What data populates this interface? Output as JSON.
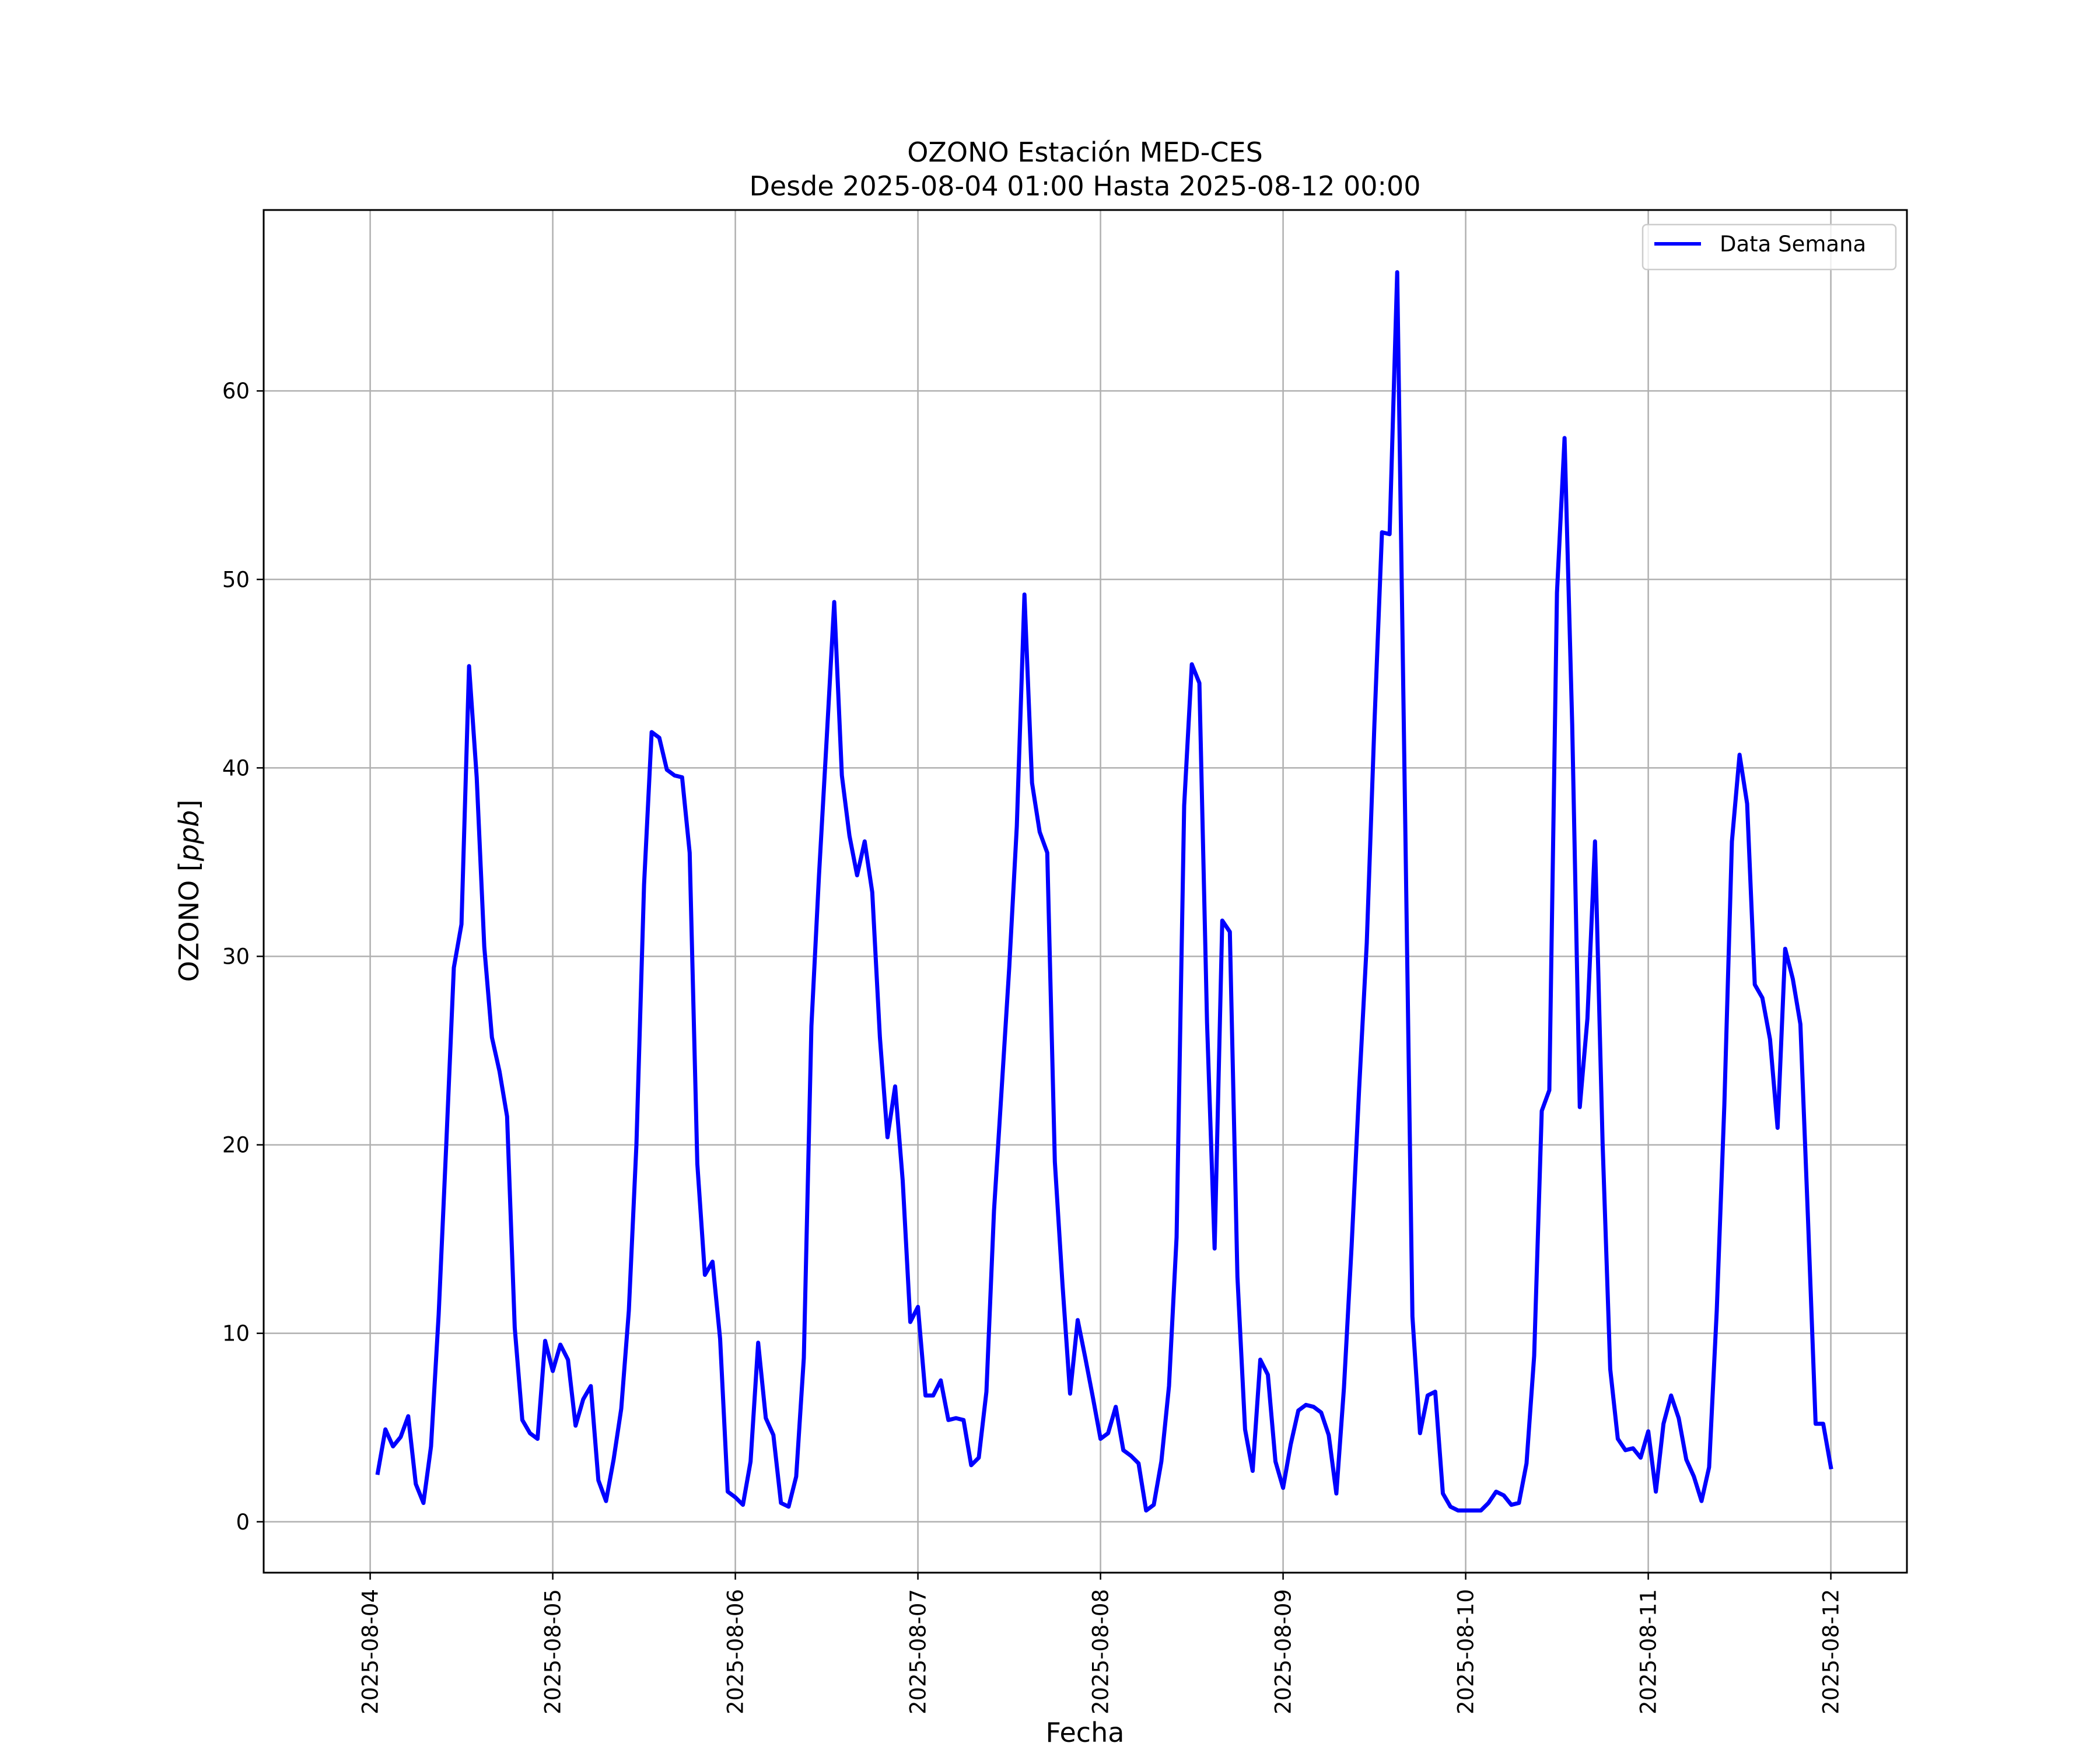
{
  "chart_data": {
    "type": "line",
    "title": "OZONO Estación MED-CES",
    "subtitle": "Desde 2025-08-04 01:00 Hasta 2025-08-12 00:00",
    "xlabel": "Fecha",
    "ylabel": "OZONO [ppb]",
    "xlim": [
      "2025-08-03 10:00",
      "2025-08-12 10:00"
    ],
    "ylim": [
      -2.7,
      69.6
    ],
    "grid": true,
    "legend_position": "top-right",
    "x_tick_labels": [
      "2025-08-04",
      "2025-08-05",
      "2025-08-06",
      "2025-08-07",
      "2025-08-08",
      "2025-08-09",
      "2025-08-10",
      "2025-08-11",
      "2025-08-12"
    ],
    "y_ticks": [
      0,
      10,
      20,
      30,
      40,
      50,
      60
    ],
    "series": [
      {
        "name": "Data Semana",
        "color": "#0000ff",
        "points": [
          [
            "2025-08-04 01:00",
            2.6
          ],
          [
            "2025-08-04 02:00",
            4.9
          ],
          [
            "2025-08-04 03:00",
            4.0
          ],
          [
            "2025-08-04 04:00",
            4.5
          ],
          [
            "2025-08-04 05:00",
            5.6
          ],
          [
            "2025-08-04 06:00",
            2.0
          ],
          [
            "2025-08-04 07:00",
            1.0
          ],
          [
            "2025-08-04 08:00",
            4.0
          ],
          [
            "2025-08-04 09:00",
            11.0
          ],
          [
            "2025-08-04 10:00",
            20.0
          ],
          [
            "2025-08-04 11:00",
            29.4
          ],
          [
            "2025-08-04 12:00",
            31.7
          ],
          [
            "2025-08-04 13:00",
            45.4
          ],
          [
            "2025-08-04 14:00",
            39.5
          ],
          [
            "2025-08-04 15:00",
            30.5
          ],
          [
            "2025-08-04 16:00",
            25.7
          ],
          [
            "2025-08-04 17:00",
            23.9
          ],
          [
            "2025-08-04 18:00",
            21.5
          ],
          [
            "2025-08-04 19:00",
            10.3
          ],
          [
            "2025-08-04 20:00",
            5.4
          ],
          [
            "2025-08-04 21:00",
            4.7
          ],
          [
            "2025-08-04 22:00",
            4.4
          ],
          [
            "2025-08-04 23:00",
            9.6
          ],
          [
            "2025-08-05 00:00",
            8.0
          ],
          [
            "2025-08-05 01:00",
            9.4
          ],
          [
            "2025-08-05 02:00",
            8.6
          ],
          [
            "2025-08-05 03:00",
            5.1
          ],
          [
            "2025-08-05 04:00",
            6.5
          ],
          [
            "2025-08-05 05:00",
            7.2
          ],
          [
            "2025-08-05 06:00",
            2.2
          ],
          [
            "2025-08-05 07:00",
            1.1
          ],
          [
            "2025-08-05 08:00",
            3.3
          ],
          [
            "2025-08-05 09:00",
            6.0
          ],
          [
            "2025-08-05 10:00",
            11.2
          ],
          [
            "2025-08-05 11:00",
            20.0
          ],
          [
            "2025-08-05 12:00",
            33.8
          ],
          [
            "2025-08-05 13:00",
            41.9
          ],
          [
            "2025-08-05 14:00",
            41.6
          ],
          [
            "2025-08-05 15:00",
            39.9
          ],
          [
            "2025-08-05 16:00",
            39.6
          ],
          [
            "2025-08-05 17:00",
            39.5
          ],
          [
            "2025-08-05 18:00",
            35.5
          ],
          [
            "2025-08-05 19:00",
            19.0
          ],
          [
            "2025-08-05 20:00",
            13.1
          ],
          [
            "2025-08-05 21:00",
            13.8
          ],
          [
            "2025-08-05 22:00",
            9.7
          ],
          [
            "2025-08-05 23:00",
            1.6
          ],
          [
            "2025-08-06 00:00",
            1.3
          ],
          [
            "2025-08-06 01:00",
            0.9
          ],
          [
            "2025-08-06 02:00",
            3.2
          ],
          [
            "2025-08-06 03:00",
            9.5
          ],
          [
            "2025-08-06 04:00",
            5.5
          ],
          [
            "2025-08-06 05:00",
            4.6
          ],
          [
            "2025-08-06 06:00",
            1.0
          ],
          [
            "2025-08-06 07:00",
            0.8
          ],
          [
            "2025-08-06 08:00",
            2.4
          ],
          [
            "2025-08-06 09:00",
            8.7
          ],
          [
            "2025-08-06 10:00",
            26.3
          ],
          [
            "2025-08-06 11:00",
            34.3
          ],
          [
            "2025-08-06 12:00",
            41.5
          ],
          [
            "2025-08-06 13:00",
            48.8
          ],
          [
            "2025-08-06 14:00",
            39.6
          ],
          [
            "2025-08-06 15:00",
            36.4
          ],
          [
            "2025-08-06 16:00",
            34.3
          ],
          [
            "2025-08-06 17:00",
            36.1
          ],
          [
            "2025-08-06 18:00",
            33.4
          ],
          [
            "2025-08-06 19:00",
            25.7
          ],
          [
            "2025-08-06 20:00",
            20.4
          ],
          [
            "2025-08-06 21:00",
            23.1
          ],
          [
            "2025-08-06 22:00",
            18.1
          ],
          [
            "2025-08-06 23:00",
            10.6
          ],
          [
            "2025-08-07 00:00",
            11.4
          ],
          [
            "2025-08-07 01:00",
            6.7
          ],
          [
            "2025-08-07 02:00",
            6.7
          ],
          [
            "2025-08-07 03:00",
            7.5
          ],
          [
            "2025-08-07 04:00",
            5.4
          ],
          [
            "2025-08-07 05:00",
            5.5
          ],
          [
            "2025-08-07 06:00",
            5.4
          ],
          [
            "2025-08-07 07:00",
            3.0
          ],
          [
            "2025-08-07 08:00",
            3.4
          ],
          [
            "2025-08-07 09:00",
            6.9
          ],
          [
            "2025-08-07 10:00",
            16.5
          ],
          [
            "2025-08-07 11:00",
            22.9
          ],
          [
            "2025-08-07 12:00",
            29.4
          ],
          [
            "2025-08-07 13:00",
            36.9
          ],
          [
            "2025-08-07 14:00",
            49.2
          ],
          [
            "2025-08-07 15:00",
            39.2
          ],
          [
            "2025-08-07 16:00",
            36.6
          ],
          [
            "2025-08-07 17:00",
            35.5
          ],
          [
            "2025-08-07 18:00",
            19.1
          ],
          [
            "2025-08-07 19:00",
            12.6
          ],
          [
            "2025-08-07 20:00",
            6.8
          ],
          [
            "2025-08-07 21:00",
            10.7
          ],
          [
            "2025-08-07 22:00",
            8.7
          ],
          [
            "2025-08-07 23:00",
            6.6
          ],
          [
            "2025-08-08 00:00",
            4.4
          ],
          [
            "2025-08-08 01:00",
            4.7
          ],
          [
            "2025-08-08 02:00",
            6.1
          ],
          [
            "2025-08-08 03:00",
            3.8
          ],
          [
            "2025-08-08 04:00",
            3.5
          ],
          [
            "2025-08-08 05:00",
            3.1
          ],
          [
            "2025-08-08 06:00",
            0.6
          ],
          [
            "2025-08-08 07:00",
            0.9
          ],
          [
            "2025-08-08 08:00",
            3.2
          ],
          [
            "2025-08-08 09:00",
            7.2
          ],
          [
            "2025-08-08 10:00",
            15.1
          ],
          [
            "2025-08-08 11:00",
            38.0
          ],
          [
            "2025-08-08 12:00",
            45.5
          ],
          [
            "2025-08-08 13:00",
            44.5
          ],
          [
            "2025-08-08 14:00",
            26.5
          ],
          [
            "2025-08-08 15:00",
            14.5
          ],
          [
            "2025-08-08 16:00",
            31.9
          ],
          [
            "2025-08-08 17:00",
            31.3
          ],
          [
            "2025-08-08 18:00",
            13.0
          ],
          [
            "2025-08-08 19:00",
            4.9
          ],
          [
            "2025-08-08 20:00",
            2.7
          ],
          [
            "2025-08-08 21:00",
            8.6
          ],
          [
            "2025-08-08 22:00",
            7.8
          ],
          [
            "2025-08-08 23:00",
            3.2
          ],
          [
            "2025-08-09 00:00",
            1.8
          ],
          [
            "2025-08-09 01:00",
            4.1
          ],
          [
            "2025-08-09 02:00",
            5.9
          ],
          [
            "2025-08-09 03:00",
            6.2
          ],
          [
            "2025-08-09 04:00",
            6.1
          ],
          [
            "2025-08-09 05:00",
            5.8
          ],
          [
            "2025-08-09 06:00",
            4.6
          ],
          [
            "2025-08-09 07:00",
            1.5
          ],
          [
            "2025-08-09 08:00",
            7.1
          ],
          [
            "2025-08-09 09:00",
            14.6
          ],
          [
            "2025-08-09 10:00",
            23.0
          ],
          [
            "2025-08-09 11:00",
            30.7
          ],
          [
            "2025-08-09 12:00",
            42.3
          ],
          [
            "2025-08-09 13:00",
            52.5
          ],
          [
            "2025-08-09 14:00",
            52.4
          ],
          [
            "2025-08-09 15:00",
            66.3
          ],
          [
            "2025-08-09 16:00",
            38.5
          ],
          [
            "2025-08-09 17:00",
            10.9
          ],
          [
            "2025-08-09 18:00",
            4.7
          ],
          [
            "2025-08-09 19:00",
            6.7
          ],
          [
            "2025-08-09 20:00",
            6.9
          ],
          [
            "2025-08-09 21:00",
            1.5
          ],
          [
            "2025-08-09 22:00",
            0.8
          ],
          [
            "2025-08-09 23:00",
            0.6
          ],
          [
            "2025-08-10 00:00",
            0.6
          ],
          [
            "2025-08-10 01:00",
            0.6
          ],
          [
            "2025-08-10 02:00",
            0.6
          ],
          [
            "2025-08-10 03:00",
            1.0
          ],
          [
            "2025-08-10 04:00",
            1.6
          ],
          [
            "2025-08-10 05:00",
            1.4
          ],
          [
            "2025-08-10 06:00",
            0.9
          ],
          [
            "2025-08-10 07:00",
            1.0
          ],
          [
            "2025-08-10 08:00",
            3.1
          ],
          [
            "2025-08-10 09:00",
            8.8
          ],
          [
            "2025-08-10 10:00",
            21.8
          ],
          [
            "2025-08-10 11:00",
            22.9
          ],
          [
            "2025-08-10 12:00",
            49.3
          ],
          [
            "2025-08-10 13:00",
            57.5
          ],
          [
            "2025-08-10 14:00",
            42.3
          ],
          [
            "2025-08-10 15:00",
            22.0
          ],
          [
            "2025-08-10 16:00",
            26.7
          ],
          [
            "2025-08-10 17:00",
            36.1
          ],
          [
            "2025-08-10 18:00",
            20.1
          ],
          [
            "2025-08-10 19:00",
            8.1
          ],
          [
            "2025-08-10 20:00",
            4.4
          ],
          [
            "2025-08-10 21:00",
            3.8
          ],
          [
            "2025-08-10 22:00",
            3.9
          ],
          [
            "2025-08-10 23:00",
            3.4
          ],
          [
            "2025-08-11 00:00",
            4.8
          ],
          [
            "2025-08-11 01:00",
            1.6
          ],
          [
            "2025-08-11 02:00",
            5.2
          ],
          [
            "2025-08-11 03:00",
            6.7
          ],
          [
            "2025-08-11 04:00",
            5.5
          ],
          [
            "2025-08-11 05:00",
            3.3
          ],
          [
            "2025-08-11 06:00",
            2.4
          ],
          [
            "2025-08-11 07:00",
            1.1
          ],
          [
            "2025-08-11 08:00",
            2.9
          ],
          [
            "2025-08-11 09:00",
            11.2
          ],
          [
            "2025-08-11 10:00",
            22.1
          ],
          [
            "2025-08-11 11:00",
            36.1
          ],
          [
            "2025-08-11 12:00",
            40.7
          ],
          [
            "2025-08-11 13:00",
            38.1
          ],
          [
            "2025-08-11 14:00",
            28.5
          ],
          [
            "2025-08-11 15:00",
            27.8
          ],
          [
            "2025-08-11 16:00",
            25.6
          ],
          [
            "2025-08-11 17:00",
            20.9
          ],
          [
            "2025-08-11 18:00",
            30.4
          ],
          [
            "2025-08-11 19:00",
            28.8
          ],
          [
            "2025-08-11 20:00",
            26.4
          ],
          [
            "2025-08-11 21:00",
            16.0
          ],
          [
            "2025-08-11 22:00",
            5.2
          ],
          [
            "2025-08-11 23:00",
            5.2
          ],
          [
            "2025-08-12 00:00",
            2.9
          ]
        ]
      }
    ]
  }
}
